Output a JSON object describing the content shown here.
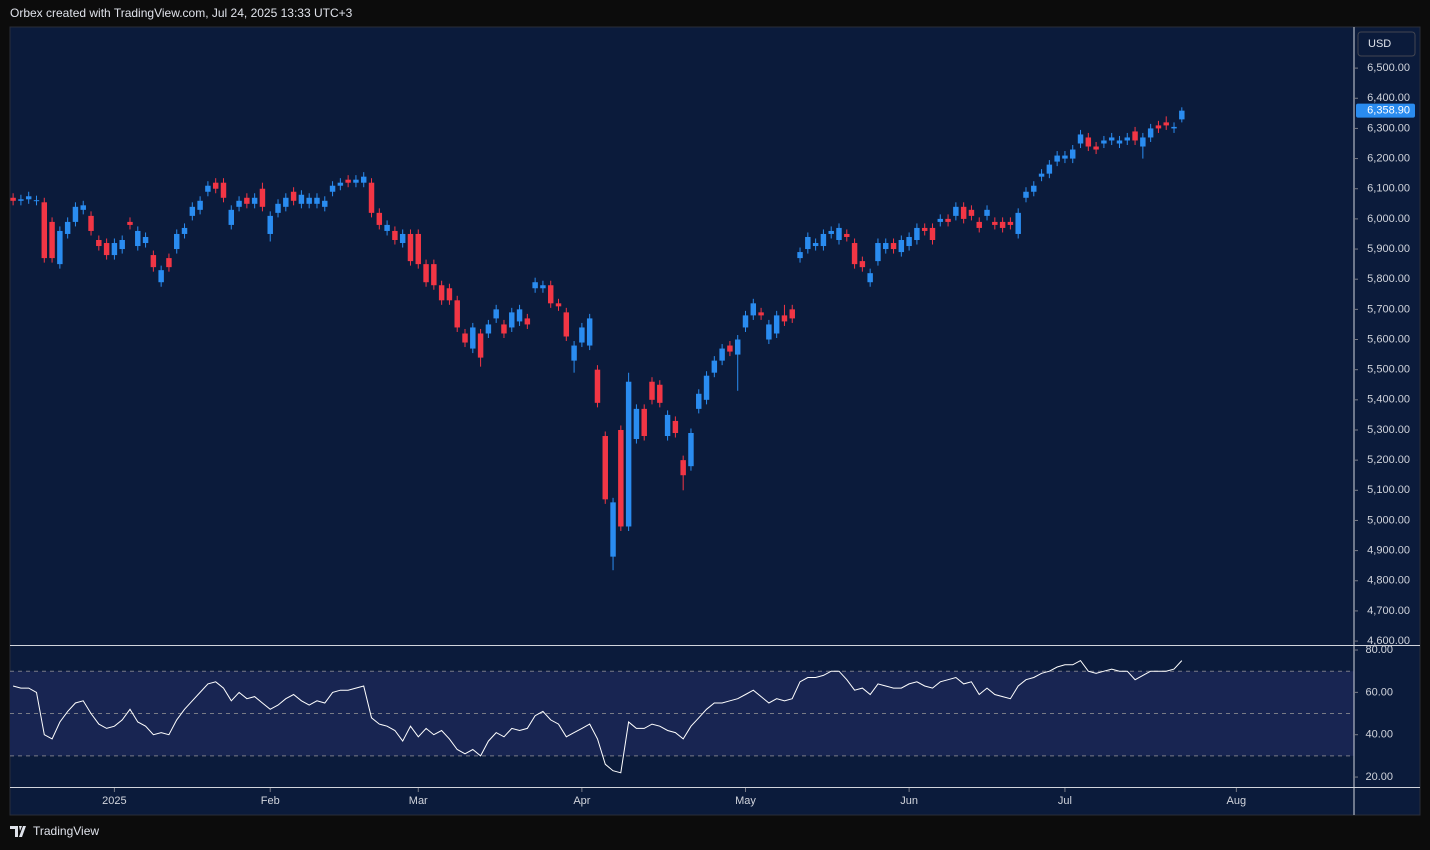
{
  "caption": "Orbex created with TradingView.com, Jul 24, 2025 13:33 UTC+3",
  "footer": "TradingView",
  "chart_data": [
    {
      "type": "candlestick",
      "currency": "USD",
      "up_color": "#2a8cf0",
      "down_color": "#f23645",
      "open": [
        6070,
        6060,
        6065,
        6060,
        6055,
        5990,
        5850,
        5950,
        5990,
        6030,
        6010,
        5930,
        5920,
        5880,
        5900,
        5990,
        5910,
        5920,
        5880,
        5790,
        5870,
        5900,
        5950,
        6010,
        6030,
        6090,
        6120,
        6120,
        5980,
        6040,
        6070,
        6050,
        6100,
        5950,
        6020,
        6040,
        6090,
        6050,
        6050,
        6050,
        6040,
        6090,
        6110,
        6130,
        6120,
        6120,
        6120,
        6020,
        5960,
        5960,
        5920,
        5950,
        5950,
        5850,
        5850,
        5780,
        5770,
        5730,
        5620,
        5570,
        5620,
        5620,
        5670,
        5650,
        5640,
        5660,
        5670,
        5770,
        5770,
        5780,
        5720,
        5690,
        5530,
        5590,
        5580,
        5500,
        5280,
        4880,
        5300,
        4980,
        5270,
        5370,
        5460,
        5450,
        5280,
        5330,
        5200,
        5180,
        5370,
        5400,
        5490,
        5530,
        5580,
        5550,
        5640,
        5680,
        5690,
        5600,
        5620,
        5680,
        5700,
        5870,
        5900,
        5910,
        5910,
        5950,
        5930,
        5950,
        5920,
        5860,
        5790,
        5860,
        5900,
        5920,
        5890,
        5910,
        5930,
        5970,
        5970,
        5990,
        6000,
        6010,
        6040,
        6030,
        5990,
        6010,
        5990,
        5990,
        5990,
        5950,
        6070,
        6090,
        6140,
        6150,
        6190,
        6200,
        6200,
        6250,
        6270,
        6240,
        6250,
        6260,
        6250,
        6260,
        6290,
        6240,
        6270,
        6310,
        6320,
        6300,
        6330
      ],
      "high": [
        6085,
        6080,
        6090,
        6077,
        6070,
        6005,
        5975,
        6005,
        6055,
        6060,
        6025,
        5945,
        5935,
        5935,
        5945,
        6005,
        5975,
        5955,
        5895,
        5845,
        5885,
        5965,
        5985,
        6055,
        6075,
        6125,
        6135,
        6135,
        6045,
        6075,
        6085,
        6085,
        6120,
        6025,
        6065,
        6085,
        6105,
        6095,
        6085,
        6085,
        6075,
        6125,
        6135,
        6145,
        6145,
        6155,
        6135,
        6035,
        5995,
        5975,
        5965,
        5965,
        5965,
        5865,
        5865,
        5795,
        5785,
        5745,
        5635,
        5655,
        5635,
        5665,
        5715,
        5665,
        5705,
        5715,
        5685,
        5805,
        5795,
        5795,
        5735,
        5705,
        5595,
        5655,
        5685,
        5515,
        5295,
        5075,
        5315,
        5490,
        5385,
        5385,
        5475,
        5465,
        5365,
        5345,
        5215,
        5305,
        5435,
        5495,
        5545,
        5585,
        5595,
        5615,
        5695,
        5735,
        5705,
        5665,
        5695,
        5715,
        5715,
        5905,
        5955,
        5935,
        5965,
        5975,
        5985,
        5965,
        5935,
        5875,
        5835,
        5935,
        5935,
        5935,
        5945,
        5955,
        5985,
        5985,
        5985,
        6015,
        6015,
        6055,
        6055,
        6045,
        6005,
        6045,
        6005,
        6005,
        6005,
        6035,
        6105,
        6125,
        6165,
        6195,
        6225,
        6225,
        6245,
        6295,
        6285,
        6255,
        6275,
        6285,
        6275,
        6285,
        6305,
        6285,
        6315,
        6325,
        6340,
        6320,
        6370
      ],
      "low": [
        6045,
        6045,
        6050,
        6045,
        5855,
        5855,
        5835,
        5935,
        5975,
        6015,
        5945,
        5895,
        5865,
        5865,
        5885,
        5965,
        5895,
        5905,
        5825,
        5775,
        5825,
        5885,
        5935,
        5995,
        6015,
        6075,
        6085,
        6055,
        5965,
        6025,
        6035,
        6035,
        6025,
        5925,
        6005,
        6025,
        6045,
        6035,
        6035,
        6035,
        6025,
        6075,
        6095,
        6105,
        6105,
        6105,
        6005,
        5965,
        5945,
        5915,
        5905,
        5845,
        5835,
        5775,
        5765,
        5715,
        5715,
        5625,
        5575,
        5555,
        5510,
        5605,
        5655,
        5605,
        5625,
        5645,
        5635,
        5755,
        5755,
        5705,
        5695,
        5595,
        5490,
        5575,
        5565,
        5375,
        5055,
        4835,
        4965,
        4965,
        5255,
        5265,
        5385,
        5375,
        5265,
        5275,
        5100,
        5165,
        5355,
        5385,
        5475,
        5515,
        5545,
        5430,
        5625,
        5665,
        5665,
        5585,
        5605,
        5645,
        5655,
        5855,
        5885,
        5895,
        5895,
        5935,
        5915,
        5925,
        5835,
        5825,
        5775,
        5845,
        5885,
        5885,
        5875,
        5895,
        5915,
        5945,
        5915,
        5975,
        5975,
        5995,
        5985,
        5995,
        5955,
        5995,
        5965,
        5955,
        5965,
        5935,
        6055,
        6075,
        6125,
        6135,
        6175,
        6185,
        6185,
        6235,
        6225,
        6215,
        6235,
        6245,
        6235,
        6245,
        6245,
        6200,
        6255,
        6285,
        6295,
        6285,
        6320
      ],
      "close": [
        6060,
        6065,
        6075,
        6062,
        5870,
        5870,
        5960,
        5990,
        6040,
        6045,
        5960,
        5910,
        5880,
        5920,
        5930,
        5980,
        5960,
        5940,
        5840,
        5830,
        5840,
        5950,
        5970,
        6040,
        6060,
        6110,
        6100,
        6070,
        6030,
        6060,
        6050,
        6070,
        6040,
        6010,
        6050,
        6070,
        6060,
        6080,
        6070,
        6070,
        6060,
        6110,
        6120,
        6120,
        6130,
        6140,
        6020,
        5980,
        5980,
        5930,
        5950,
        5860,
        5850,
        5790,
        5780,
        5730,
        5730,
        5640,
        5590,
        5640,
        5540,
        5650,
        5700,
        5620,
        5690,
        5700,
        5650,
        5790,
        5780,
        5720,
        5710,
        5610,
        5580,
        5640,
        5670,
        5390,
        5070,
        5060,
        4980,
        5460,
        5370,
        5280,
        5400,
        5390,
        5350,
        5290,
        5150,
        5290,
        5420,
        5480,
        5530,
        5570,
        5560,
        5600,
        5680,
        5720,
        5680,
        5650,
        5680,
        5660,
        5670,
        5890,
        5940,
        5920,
        5950,
        5960,
        5970,
        5940,
        5850,
        5840,
        5820,
        5920,
        5920,
        5900,
        5930,
        5940,
        5970,
        5960,
        5930,
        6000,
        5990,
        6040,
        6000,
        6010,
        5970,
        6030,
        5980,
        5970,
        5980,
        6020,
        6090,
        6110,
        6150,
        6180,
        6210,
        6210,
        6230,
        6280,
        6240,
        6230,
        6260,
        6270,
        6260,
        6270,
        6260,
        6270,
        6300,
        6300,
        6310,
        6305,
        6358.9
      ],
      "last_price": {
        "value": 6358.9,
        "label": "6,358.90"
      },
      "ylim": [
        4587,
        6633
      ],
      "yticks": [
        {
          "value": 4600,
          "label": "4,600.00"
        },
        {
          "value": 4700,
          "label": "4,700.00"
        },
        {
          "value": 4800,
          "label": "4,800.00"
        },
        {
          "value": 4900,
          "label": "4,900.00"
        },
        {
          "value": 5000,
          "label": "5,000.00"
        },
        {
          "value": 5100,
          "label": "5,100.00"
        },
        {
          "value": 5200,
          "label": "5,200.00"
        },
        {
          "value": 5300,
          "label": "5,300.00"
        },
        {
          "value": 5400,
          "label": "5,400.00"
        },
        {
          "value": 5500,
          "label": "5,500.00"
        },
        {
          "value": 5600,
          "label": "5,600.00"
        },
        {
          "value": 5700,
          "label": "5,700.00"
        },
        {
          "value": 5800,
          "label": "5,800.00"
        },
        {
          "value": 5900,
          "label": "5,900.00"
        },
        {
          "value": 6000,
          "label": "6,000.00"
        },
        {
          "value": 6100,
          "label": "6,100.00"
        },
        {
          "value": 6200,
          "label": "6,200.00"
        },
        {
          "value": 6300,
          "label": "6,300.00"
        },
        {
          "value": 6400,
          "label": "6,400.00"
        },
        {
          "value": 6500,
          "label": "6,500.00"
        }
      ],
      "xlim": [
        -0.4,
        172.1
      ],
      "xticks": [
        {
          "value": 13,
          "label": "2025"
        },
        {
          "value": 33,
          "label": "Feb"
        },
        {
          "value": 52,
          "label": "Mar"
        },
        {
          "value": 73,
          "label": "Apr"
        },
        {
          "value": 94,
          "label": "May"
        },
        {
          "value": 115,
          "label": "Jun"
        },
        {
          "value": 135,
          "label": "Jul"
        },
        {
          "value": 157,
          "label": "Aug"
        }
      ]
    },
    {
      "type": "line",
      "color": "#ffffff",
      "values": [
        63,
        62,
        62,
        60,
        40,
        38,
        46,
        51,
        55,
        56,
        50,
        45,
        43,
        44,
        47,
        52,
        46,
        44,
        40,
        41,
        40,
        47,
        52,
        56,
        60,
        64,
        65,
        62,
        56,
        60,
        57,
        58,
        55,
        52,
        54,
        57,
        59,
        56,
        54,
        56,
        55,
        60,
        61,
        61,
        62,
        63,
        48,
        45,
        44,
        42,
        37,
        44,
        39,
        43,
        40,
        42,
        38,
        33,
        31,
        33,
        30,
        37,
        41,
        39,
        43,
        42,
        43,
        49,
        51,
        47,
        45,
        39,
        41,
        43,
        45,
        38,
        26,
        23,
        22,
        46,
        43,
        43,
        45,
        44,
        42,
        41,
        38,
        44,
        48,
        52,
        55,
        55,
        56,
        57,
        59,
        61,
        58,
        55,
        57,
        56,
        57,
        65,
        67,
        67,
        68,
        70,
        70,
        66,
        61,
        62,
        59,
        64,
        63,
        62,
        62,
        64,
        65,
        63,
        62,
        65,
        66,
        67,
        64,
        65,
        59,
        62,
        59,
        58,
        57,
        63,
        66,
        67,
        69,
        70,
        72,
        73,
        73,
        75,
        70,
        69,
        70,
        71,
        70,
        70,
        66,
        68,
        70,
        70,
        70,
        71,
        75
      ],
      "levels": [
        30,
        50,
        70
      ],
      "ylim": [
        15.3,
        81.9
      ],
      "yticks": [
        {
          "value": 20,
          "label": "20.00"
        },
        {
          "value": 40,
          "label": "40.00"
        },
        {
          "value": 60,
          "label": "60.00"
        },
        {
          "value": 80,
          "label": "80.00"
        }
      ]
    }
  ]
}
